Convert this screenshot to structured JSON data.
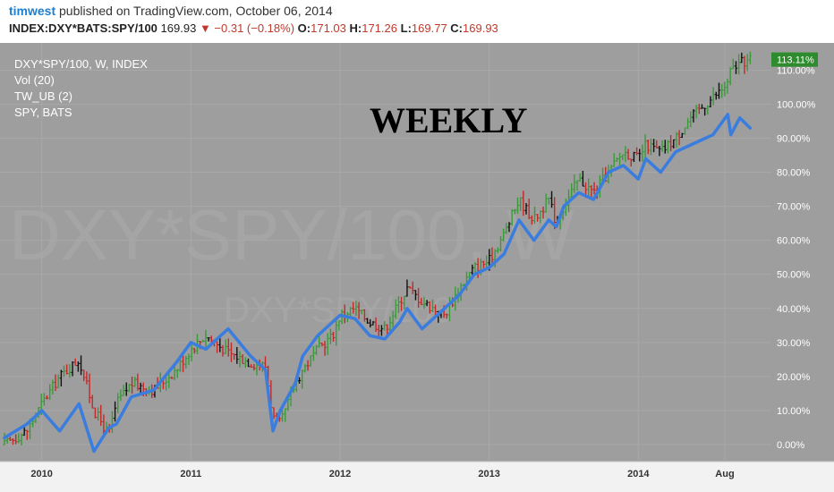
{
  "header": {
    "author": "timwest",
    "published": "published on TradingView.com, October 06, 2014",
    "symbol": "INDEX:DXY*BATS:SPY/100",
    "last": "169.93",
    "change": "▼ −0.31 (−0.18%)",
    "o_label": "O:",
    "o_value": "171.03",
    "h_label": "H:",
    "h_value": "171.26",
    "l_label": "L:",
    "l_value": "169.77",
    "c_label": "C:",
    "c_value": "169.93"
  },
  "legend": {
    "series_main": "DXY*SPY/100, W, INDEX",
    "vol": "Vol (20)",
    "tw": "TW_UB (2)",
    "spy": "SPY, BATS"
  },
  "watermark": {
    "big": "DXY*SPY/100, W",
    "small": "DXY*SPY/100"
  },
  "annotation": "WEEKLY",
  "last_price_tag": "113.11%",
  "colors": {
    "background": "#9e9e9e",
    "up_bar": "#3a9a3a",
    "down_bar": "#c62828",
    "neutral_bar": "#111111",
    "spy_line": "#3b7dde",
    "price_tag": "#2e8b2e"
  },
  "chart_data": {
    "type": "line",
    "title": "",
    "xlabel": "",
    "ylabel": "",
    "ylim": [
      -5,
      118
    ],
    "x_ticks": [
      "2010",
      "2011",
      "2012",
      "2013",
      "2014",
      "Aug"
    ],
    "y_ticks": [
      "0.00%",
      "10.00%",
      "20.00%",
      "30.00%",
      "40.00%",
      "50.00%",
      "60.00%",
      "70.00%",
      "80.00%",
      "90.00%",
      "100.00%",
      "110.00%"
    ],
    "y_tick_values": [
      0,
      10,
      20,
      30,
      40,
      50,
      60,
      70,
      80,
      90,
      100,
      110
    ],
    "x": [
      2009.75,
      2009.9,
      2010.0,
      2010.12,
      2010.25,
      2010.35,
      2010.45,
      2010.5,
      2010.6,
      2010.75,
      2010.9,
      2011.0,
      2011.1,
      2011.25,
      2011.4,
      2011.5,
      2011.55,
      2011.6,
      2011.7,
      2011.75,
      2011.85,
      2011.95,
      2012.0,
      2012.1,
      2012.2,
      2012.3,
      2012.4,
      2012.45,
      2012.55,
      2012.7,
      2012.8,
      2012.9,
      2013.0,
      2013.1,
      2013.2,
      2013.3,
      2013.4,
      2013.45,
      2013.5,
      2013.6,
      2013.7,
      2013.8,
      2013.9,
      2014.0,
      2014.05,
      2014.15,
      2014.25,
      2014.35,
      2014.45,
      2014.5,
      2014.6,
      2014.62,
      2014.68,
      2014.75
    ],
    "series": [
      {
        "values": [
          0,
          4,
          12,
          20,
          25,
          10,
          3,
          12,
          18,
          16,
          22,
          28,
          32,
          27,
          24,
          23,
          8,
          6,
          18,
          22,
          28,
          32,
          38,
          40,
          36,
          34,
          42,
          46,
          42,
          38,
          46,
          52,
          54,
          62,
          72,
          66,
          72,
          65,
          70,
          78,
          74,
          80,
          86,
          84,
          88,
          86,
          90,
          96,
          100,
          102,
          106,
          110,
          112,
          113.11
        ]
      },
      {
        "values": [
          2,
          6,
          10,
          4,
          12,
          -2,
          5,
          6,
          14,
          16,
          24,
          30,
          28,
          34,
          26,
          22,
          4,
          10,
          18,
          26,
          32,
          36,
          38,
          37,
          32,
          31,
          36,
          40,
          34,
          40,
          44,
          50,
          52,
          56,
          66,
          60,
          66,
          64,
          70,
          74,
          72,
          80,
          82,
          78,
          84,
          80,
          86,
          88,
          90,
          91,
          97,
          91,
          96,
          93
        ]
      }
    ]
  }
}
